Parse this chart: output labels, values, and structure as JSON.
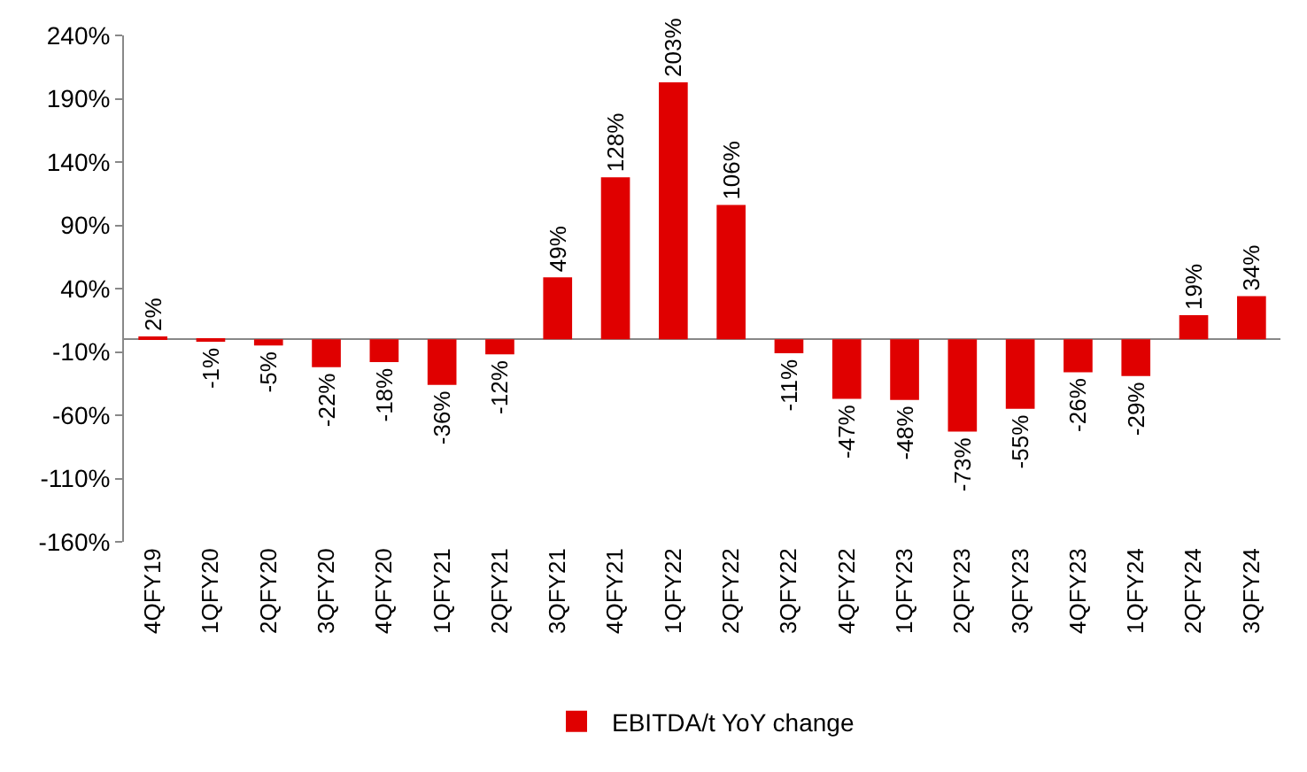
{
  "chart_data": {
    "type": "bar",
    "categories": [
      "4QFY19",
      "1QFY20",
      "2QFY20",
      "3QFY20",
      "4QFY20",
      "1QFY21",
      "2QFY21",
      "3QFY21",
      "4QFY21",
      "1QFY22",
      "2QFY22",
      "3QFY22",
      "4QFY22",
      "1QFY23",
      "2QFY23",
      "3QFY23",
      "4QFY23",
      "1QFY24",
      "2QFY24",
      "3QFY24"
    ],
    "series": [
      {
        "name": "EBITDA/t YoY change",
        "color": "#e00000",
        "values": [
          2,
          -1,
          -5,
          -22,
          -18,
          -36,
          -12,
          49,
          128,
          203,
          106,
          -11,
          -47,
          -48,
          -73,
          -55,
          -26,
          -29,
          19,
          34
        ],
        "value_labels": [
          "2%",
          "-1%",
          "-5%",
          "-22%",
          "-18%",
          "-36%",
          "-12%",
          "49%",
          "128%",
          "203%",
          "106%",
          "-11%",
          "-47%",
          "-48%",
          "-73%",
          "-55%",
          "-26%",
          "-29%",
          "19%",
          "34%"
        ]
      }
    ],
    "ylim": [
      -160,
      240
    ],
    "yticks": [
      {
        "value": -160,
        "label": "-160%"
      },
      {
        "value": -110,
        "label": "-110%"
      },
      {
        "value": -60,
        "label": "-60%"
      },
      {
        "value": -10,
        "label": "-10%"
      },
      {
        "value": 40,
        "label": "40%"
      },
      {
        "value": 90,
        "label": "90%"
      },
      {
        "value": 140,
        "label": "140%"
      },
      {
        "value": 190,
        "label": "190%"
      },
      {
        "value": 240,
        "label": "240%"
      }
    ],
    "legend": "bottom"
  }
}
